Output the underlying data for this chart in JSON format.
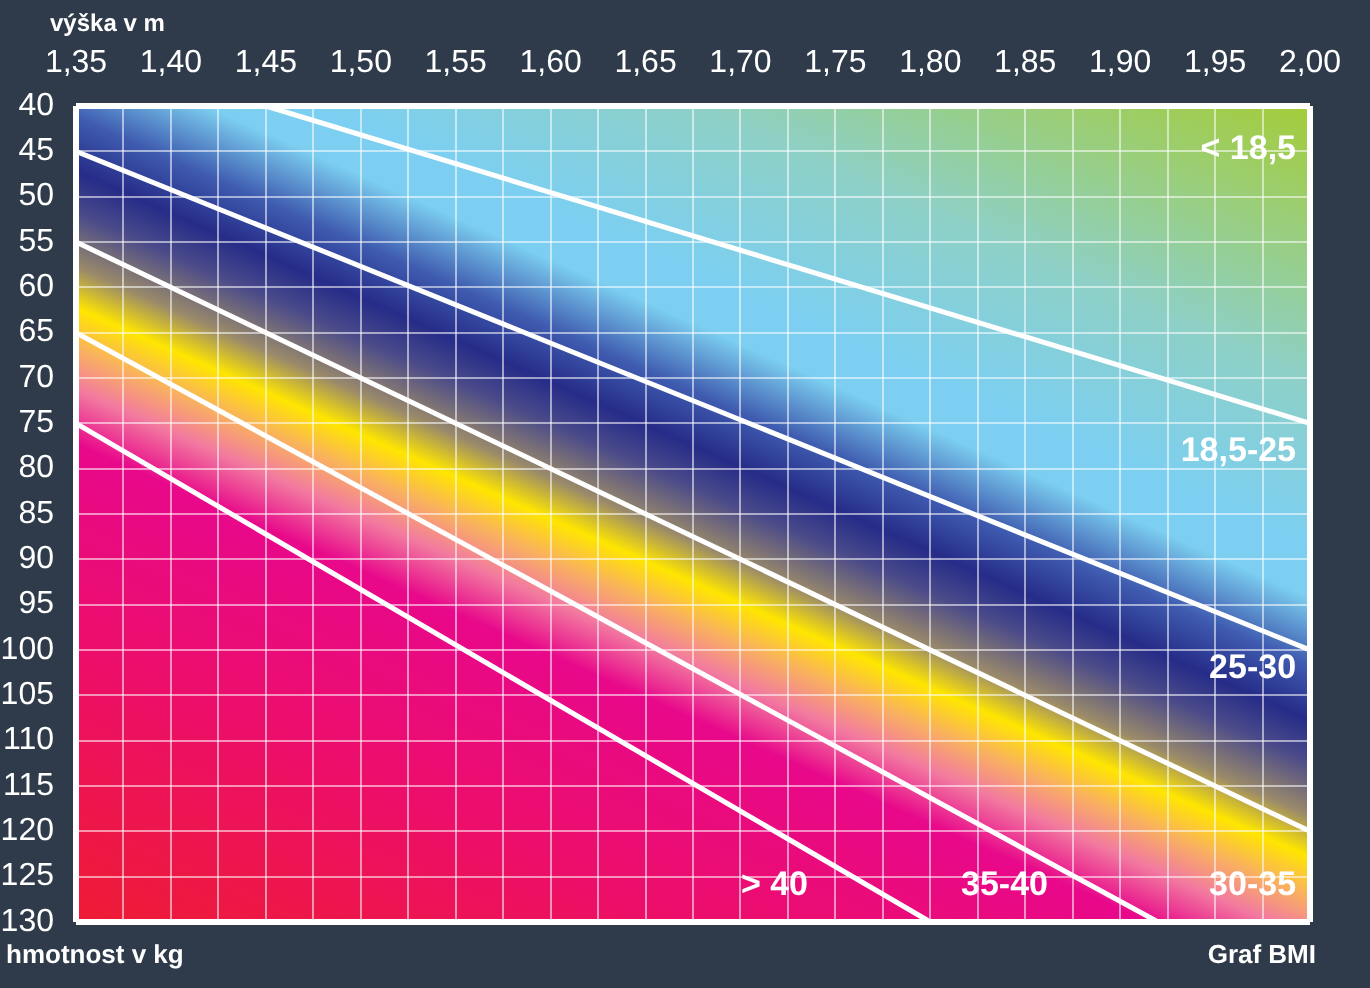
{
  "chart_data": {
    "type": "line",
    "title": "Graf BMI",
    "xlabel": "výška v m",
    "ylabel": "hmotnost v kg",
    "series": [
      {
        "color": "#ffffff",
        "x": [
          1.45,
          2.0
        ],
        "values": [
          40,
          75
        ]
      },
      {
        "color": "#ffffff",
        "x": [
          1.35,
          2.0
        ],
        "values": [
          45,
          100
        ]
      },
      {
        "color": "#ffffff",
        "x": [
          1.35,
          2.0
        ],
        "values": [
          55,
          120
        ]
      },
      {
        "color": "#ffffff",
        "x": [
          1.35,
          1.92
        ],
        "values": [
          65,
          130
        ]
      },
      {
        "color": "#ffffff",
        "x": [
          1.35,
          1.8
        ],
        "values": [
          75,
          130
        ]
      }
    ],
    "xlim": [
      1.35,
      2.0
    ],
    "xticks": [
      {
        "value": 1.35,
        "label": "1,35"
      },
      {
        "value": 1.375,
        "label": null
      },
      {
        "value": 1.4,
        "label": "1,40"
      },
      {
        "value": 1.425,
        "label": null
      },
      {
        "value": 1.45,
        "label": "1,45"
      },
      {
        "value": 1.475,
        "label": null
      },
      {
        "value": 1.5,
        "label": "1,50"
      },
      {
        "value": 1.525,
        "label": null
      },
      {
        "value": 1.55,
        "label": "1,55"
      },
      {
        "value": 1.575,
        "label": null
      },
      {
        "value": 1.6,
        "label": "1,60"
      },
      {
        "value": 1.625,
        "label": null
      },
      {
        "value": 1.65,
        "label": "1,65"
      },
      {
        "value": 1.675,
        "label": null
      },
      {
        "value": 1.7,
        "label": "1,70"
      },
      {
        "value": 1.725,
        "label": null
      },
      {
        "value": 1.75,
        "label": "1,75"
      },
      {
        "value": 1.775,
        "label": null
      },
      {
        "value": 1.8,
        "label": "1,80"
      },
      {
        "value": 1.825,
        "label": null
      },
      {
        "value": 1.85,
        "label": "1,85"
      },
      {
        "value": 1.875,
        "label": null
      },
      {
        "value": 1.9,
        "label": "1,90"
      },
      {
        "value": 1.925,
        "label": null
      },
      {
        "value": 1.95,
        "label": "1,95"
      },
      {
        "value": 1.975,
        "label": null
      },
      {
        "value": 2.0,
        "label": "2,00"
      }
    ],
    "ylim": [
      130,
      40
    ],
    "yticks": [
      40,
      45,
      50,
      55,
      60,
      65,
      70,
      75,
      80,
      85,
      90,
      95,
      100,
      105,
      110,
      115,
      120,
      125,
      130
    ],
    "grid": true,
    "marker": "none",
    "line_style": "solid",
    "annotations": [
      "< 18,5",
      "18,5-25",
      "25-30",
      "30-35",
      "35-40",
      "> 40"
    ]
  }
}
